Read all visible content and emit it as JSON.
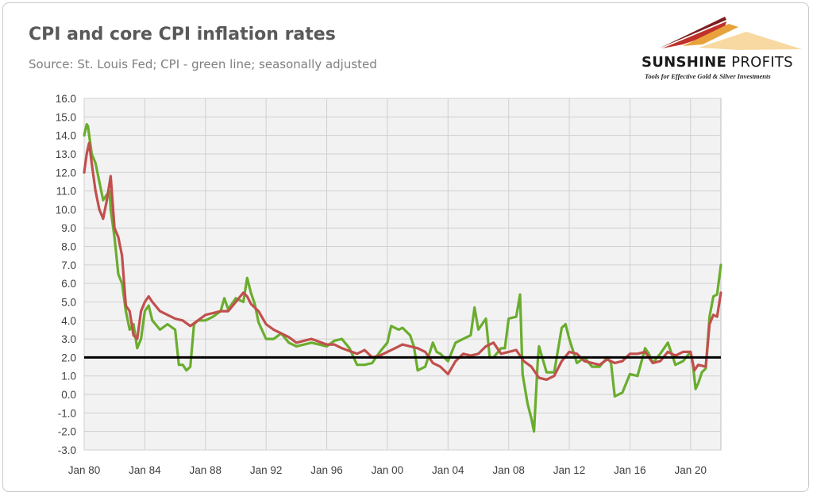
{
  "header": {
    "title": "CPI and core CPI inflation rates",
    "subtitle": "Source: St. Louis Fed; CPI - green line; seasonally adjusted"
  },
  "logo": {
    "brand_bold": "SUNSHINE",
    "brand_thin": " PROFITS",
    "tagline": "Tools for Effective Gold & Silver Investments"
  },
  "colors": {
    "cpi": "#6aad2e",
    "core_cpi": "#c0504d",
    "reference_line": "#000000",
    "plot_background": "#f2f2f2"
  },
  "chart_data": {
    "type": "line",
    "title": "CPI and core CPI inflation rates",
    "subtitle": "Source: St. Louis Fed; CPI - green line; seasonally adjusted",
    "xlabel": "",
    "ylabel": "",
    "ylim": [
      -3.0,
      16.0
    ],
    "xlim": [
      1980.0,
      2022.0
    ],
    "y_ticks": [
      "16.0",
      "15.0",
      "14.0",
      "13.0",
      "12.0",
      "11.0",
      "10.0",
      "9.0",
      "8.0",
      "7.0",
      "6.0",
      "5.0",
      "4.0",
      "3.0",
      "2.0",
      "1.0",
      "0.0",
      "-1.0",
      "-2.0",
      "-3.0"
    ],
    "x_ticks": [
      {
        "label": "Jan 80",
        "value": 1980
      },
      {
        "label": "Jan 84",
        "value": 1984
      },
      {
        "label": "Jan 88",
        "value": 1988
      },
      {
        "label": "Jan 92",
        "value": 1992
      },
      {
        "label": "Jan 96",
        "value": 1996
      },
      {
        "label": "Jan 00",
        "value": 2000
      },
      {
        "label": "Jan 04",
        "value": 2004
      },
      {
        "label": "Jan 08",
        "value": 2008
      },
      {
        "label": "Jan 12",
        "value": 2012
      },
      {
        "label": "Jan 16",
        "value": 2016
      },
      {
        "label": "Jan 20",
        "value": 2020
      }
    ],
    "grid": true,
    "reference_line": 2.0,
    "series": [
      {
        "name": "CPI",
        "x": [
          1980.0,
          1980.17,
          1980.25,
          1980.5,
          1980.75,
          1981.0,
          1981.25,
          1981.5,
          1981.67,
          1981.75,
          1982.0,
          1982.25,
          1982.5,
          1982.75,
          1983.0,
          1983.25,
          1983.5,
          1983.75,
          1984.0,
          1984.25,
          1984.5,
          1985.0,
          1985.5,
          1986.0,
          1986.25,
          1986.5,
          1986.75,
          1987.0,
          1987.25,
          1987.5,
          1988.0,
          1988.5,
          1989.0,
          1989.25,
          1989.5,
          1990.0,
          1990.5,
          1990.75,
          1991.0,
          1991.25,
          1991.5,
          1992.0,
          1992.5,
          1993.0,
          1993.5,
          1994.0,
          1995.0,
          1996.0,
          1996.5,
          1997.0,
          1997.5,
          1998.0,
          1998.5,
          1999.0,
          1999.5,
          2000.0,
          2000.25,
          2000.75,
          2001.0,
          2001.5,
          2001.75,
          2002.0,
          2002.5,
          2003.0,
          2003.25,
          2003.5,
          2004.0,
          2004.5,
          2005.0,
          2005.5,
          2005.75,
          2006.0,
          2006.5,
          2006.75,
          2007.0,
          2007.5,
          2007.75,
          2008.0,
          2008.5,
          2008.75,
          2008.92,
          2009.25,
          2009.5,
          2009.67,
          2009.92,
          2010.0,
          2010.5,
          2011.0,
          2011.5,
          2011.75,
          2012.0,
          2012.5,
          2013.0,
          2013.5,
          2014.0,
          2014.5,
          2014.75,
          2015.0,
          2015.5,
          2016.0,
          2016.5,
          2017.0,
          2017.25,
          2017.5,
          2018.0,
          2018.5,
          2019.0,
          2019.5,
          2020.0,
          2020.17,
          2020.33,
          2020.5,
          2020.75,
          2021.0,
          2021.25,
          2021.5,
          2021.75,
          2022.0
        ],
        "values": [
          14.0,
          14.6,
          14.5,
          13.0,
          12.5,
          11.5,
          10.5,
          10.8,
          11.0,
          10.0,
          8.5,
          6.5,
          6.0,
          4.5,
          3.5,
          3.8,
          2.5,
          3.0,
          4.5,
          4.8,
          4.0,
          3.5,
          3.8,
          3.5,
          1.6,
          1.6,
          1.3,
          1.5,
          3.8,
          4.0,
          4.0,
          4.2,
          4.5,
          5.2,
          4.6,
          5.2,
          5.0,
          6.3,
          5.5,
          4.9,
          3.9,
          3.0,
          3.0,
          3.3,
          2.8,
          2.6,
          2.8,
          2.6,
          2.9,
          3.0,
          2.5,
          1.6,
          1.6,
          1.7,
          2.3,
          2.8,
          3.7,
          3.5,
          3.6,
          3.2,
          2.6,
          1.3,
          1.5,
          2.8,
          2.3,
          2.2,
          1.8,
          2.8,
          3.0,
          3.2,
          4.7,
          3.5,
          4.1,
          2.0,
          2.0,
          2.5,
          2.5,
          4.1,
          4.2,
          5.4,
          1.1,
          -0.5,
          -1.3,
          -2.0,
          1.8,
          2.6,
          1.2,
          1.2,
          3.6,
          3.8,
          3.0,
          1.7,
          2.0,
          1.5,
          1.5,
          2.0,
          1.7,
          -0.1,
          0.1,
          1.1,
          1.0,
          2.5,
          2.2,
          1.7,
          2.2,
          2.8,
          1.6,
          1.8,
          2.3,
          1.5,
          0.3,
          0.6,
          1.2,
          1.4,
          4.2,
          5.3,
          5.4,
          7.0
        ]
      },
      {
        "name": "Core CPI",
        "x": [
          1980.0,
          1980.17,
          1980.33,
          1980.5,
          1980.75,
          1981.0,
          1981.25,
          1981.5,
          1981.75,
          1982.0,
          1982.25,
          1982.5,
          1982.75,
          1983.0,
          1983.25,
          1983.5,
          1983.75,
          1984.0,
          1984.25,
          1984.5,
          1985.0,
          1985.5,
          1986.0,
          1986.5,
          1987.0,
          1987.5,
          1988.0,
          1988.5,
          1989.0,
          1989.5,
          1990.0,
          1990.5,
          1990.75,
          1991.0,
          1991.5,
          1992.0,
          1992.5,
          1993.0,
          1993.5,
          1994.0,
          1995.0,
          1996.0,
          1996.5,
          1997.0,
          1998.0,
          1998.5,
          1999.0,
          1999.5,
          2000.0,
          2000.5,
          2001.0,
          2001.5,
          2002.0,
          2002.5,
          2003.0,
          2003.5,
          2004.0,
          2004.5,
          2005.0,
          2005.5,
          2006.0,
          2006.5,
          2007.0,
          2007.5,
          2008.0,
          2008.5,
          2009.0,
          2009.5,
          2010.0,
          2010.5,
          2011.0,
          2011.5,
          2012.0,
          2012.5,
          2013.0,
          2013.5,
          2014.0,
          2014.5,
          2015.0,
          2015.5,
          2016.0,
          2016.5,
          2017.0,
          2017.5,
          2018.0,
          2018.5,
          2019.0,
          2019.5,
          2020.0,
          2020.25,
          2020.5,
          2021.0,
          2021.25,
          2021.5,
          2021.75,
          2022.0
        ],
        "values": [
          12.0,
          13.0,
          13.6,
          12.5,
          11.0,
          10.0,
          9.5,
          10.5,
          11.8,
          9.0,
          8.5,
          7.5,
          4.8,
          4.5,
          3.2,
          3.0,
          4.5,
          5.0,
          5.3,
          5.0,
          4.5,
          4.3,
          4.1,
          4.0,
          3.7,
          4.0,
          4.3,
          4.4,
          4.5,
          4.5,
          5.0,
          5.5,
          5.3,
          4.9,
          4.5,
          3.8,
          3.5,
          3.3,
          3.1,
          2.8,
          3.0,
          2.7,
          2.7,
          2.5,
          2.2,
          2.4,
          2.0,
          2.1,
          2.3,
          2.5,
          2.7,
          2.6,
          2.5,
          2.3,
          1.7,
          1.5,
          1.1,
          1.8,
          2.2,
          2.1,
          2.2,
          2.6,
          2.8,
          2.2,
          2.3,
          2.4,
          1.8,
          1.5,
          0.9,
          0.8,
          1.0,
          1.8,
          2.3,
          2.2,
          1.8,
          1.7,
          1.6,
          1.9,
          1.7,
          1.8,
          2.2,
          2.2,
          2.3,
          1.7,
          1.8,
          2.3,
          2.1,
          2.3,
          2.3,
          1.3,
          1.6,
          1.5,
          3.8,
          4.3,
          4.2,
          5.5
        ]
      }
    ]
  }
}
